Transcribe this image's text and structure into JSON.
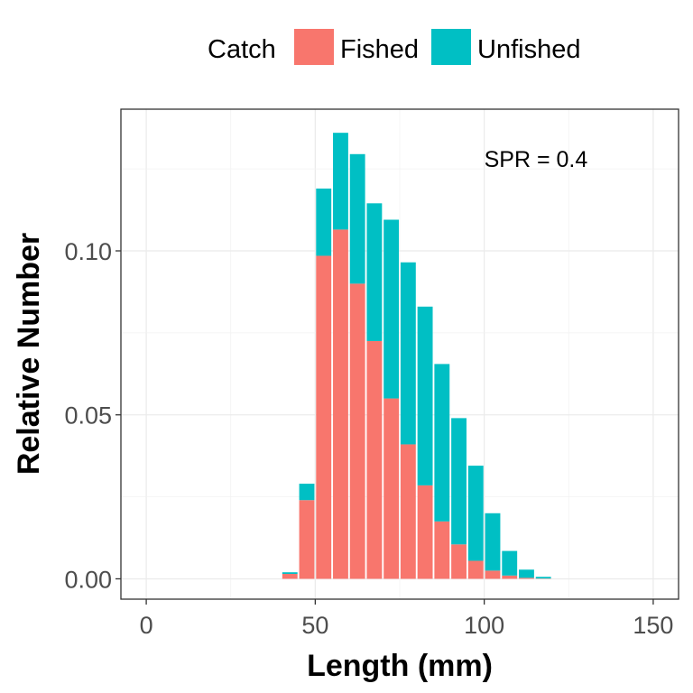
{
  "chart_data": {
    "type": "bar",
    "stacked": true,
    "xlabel": "Length (mm)",
    "ylabel": "Relative Number",
    "xlim": [
      -7.5,
      157.5
    ],
    "ylim": [
      -0.0062,
      0.1432
    ],
    "x_ticks": [
      "0",
      "50",
      "100",
      "150"
    ],
    "x_tick_values": [
      0,
      50,
      100,
      150
    ],
    "y_ticks": [
      "0.00",
      "0.05",
      "0.10"
    ],
    "y_tick_values": [
      0,
      0.05,
      0.1
    ],
    "grid": true,
    "legend_title": "Catch",
    "legend_position": "top",
    "annotation": "SPR = 0.4",
    "annotation_pos": [
      100,
      0.128
    ],
    "bin_width": 5,
    "x": [
      42.5,
      47.5,
      52.5,
      57.5,
      62.5,
      67.5,
      72.5,
      77.5,
      82.5,
      87.5,
      92.5,
      97.5,
      102.5,
      107.5,
      112.5,
      117.5
    ],
    "series": [
      {
        "name": "Fished",
        "color": "#F8766D",
        "values": [
          0.0015,
          0.024,
          0.0985,
          0.1065,
          0.09,
          0.0725,
          0.055,
          0.041,
          0.0285,
          0.0175,
          0.0105,
          0.0055,
          0.0025,
          0.001,
          0.0003,
          0.0001
        ]
      },
      {
        "name": "Unfished",
        "color": "#00BFC4",
        "values": [
          0.0005,
          0.005,
          0.0205,
          0.0295,
          0.0395,
          0.042,
          0.0545,
          0.0555,
          0.0545,
          0.048,
          0.0385,
          0.029,
          0.0175,
          0.0075,
          0.0025,
          0.0005
        ]
      }
    ]
  }
}
